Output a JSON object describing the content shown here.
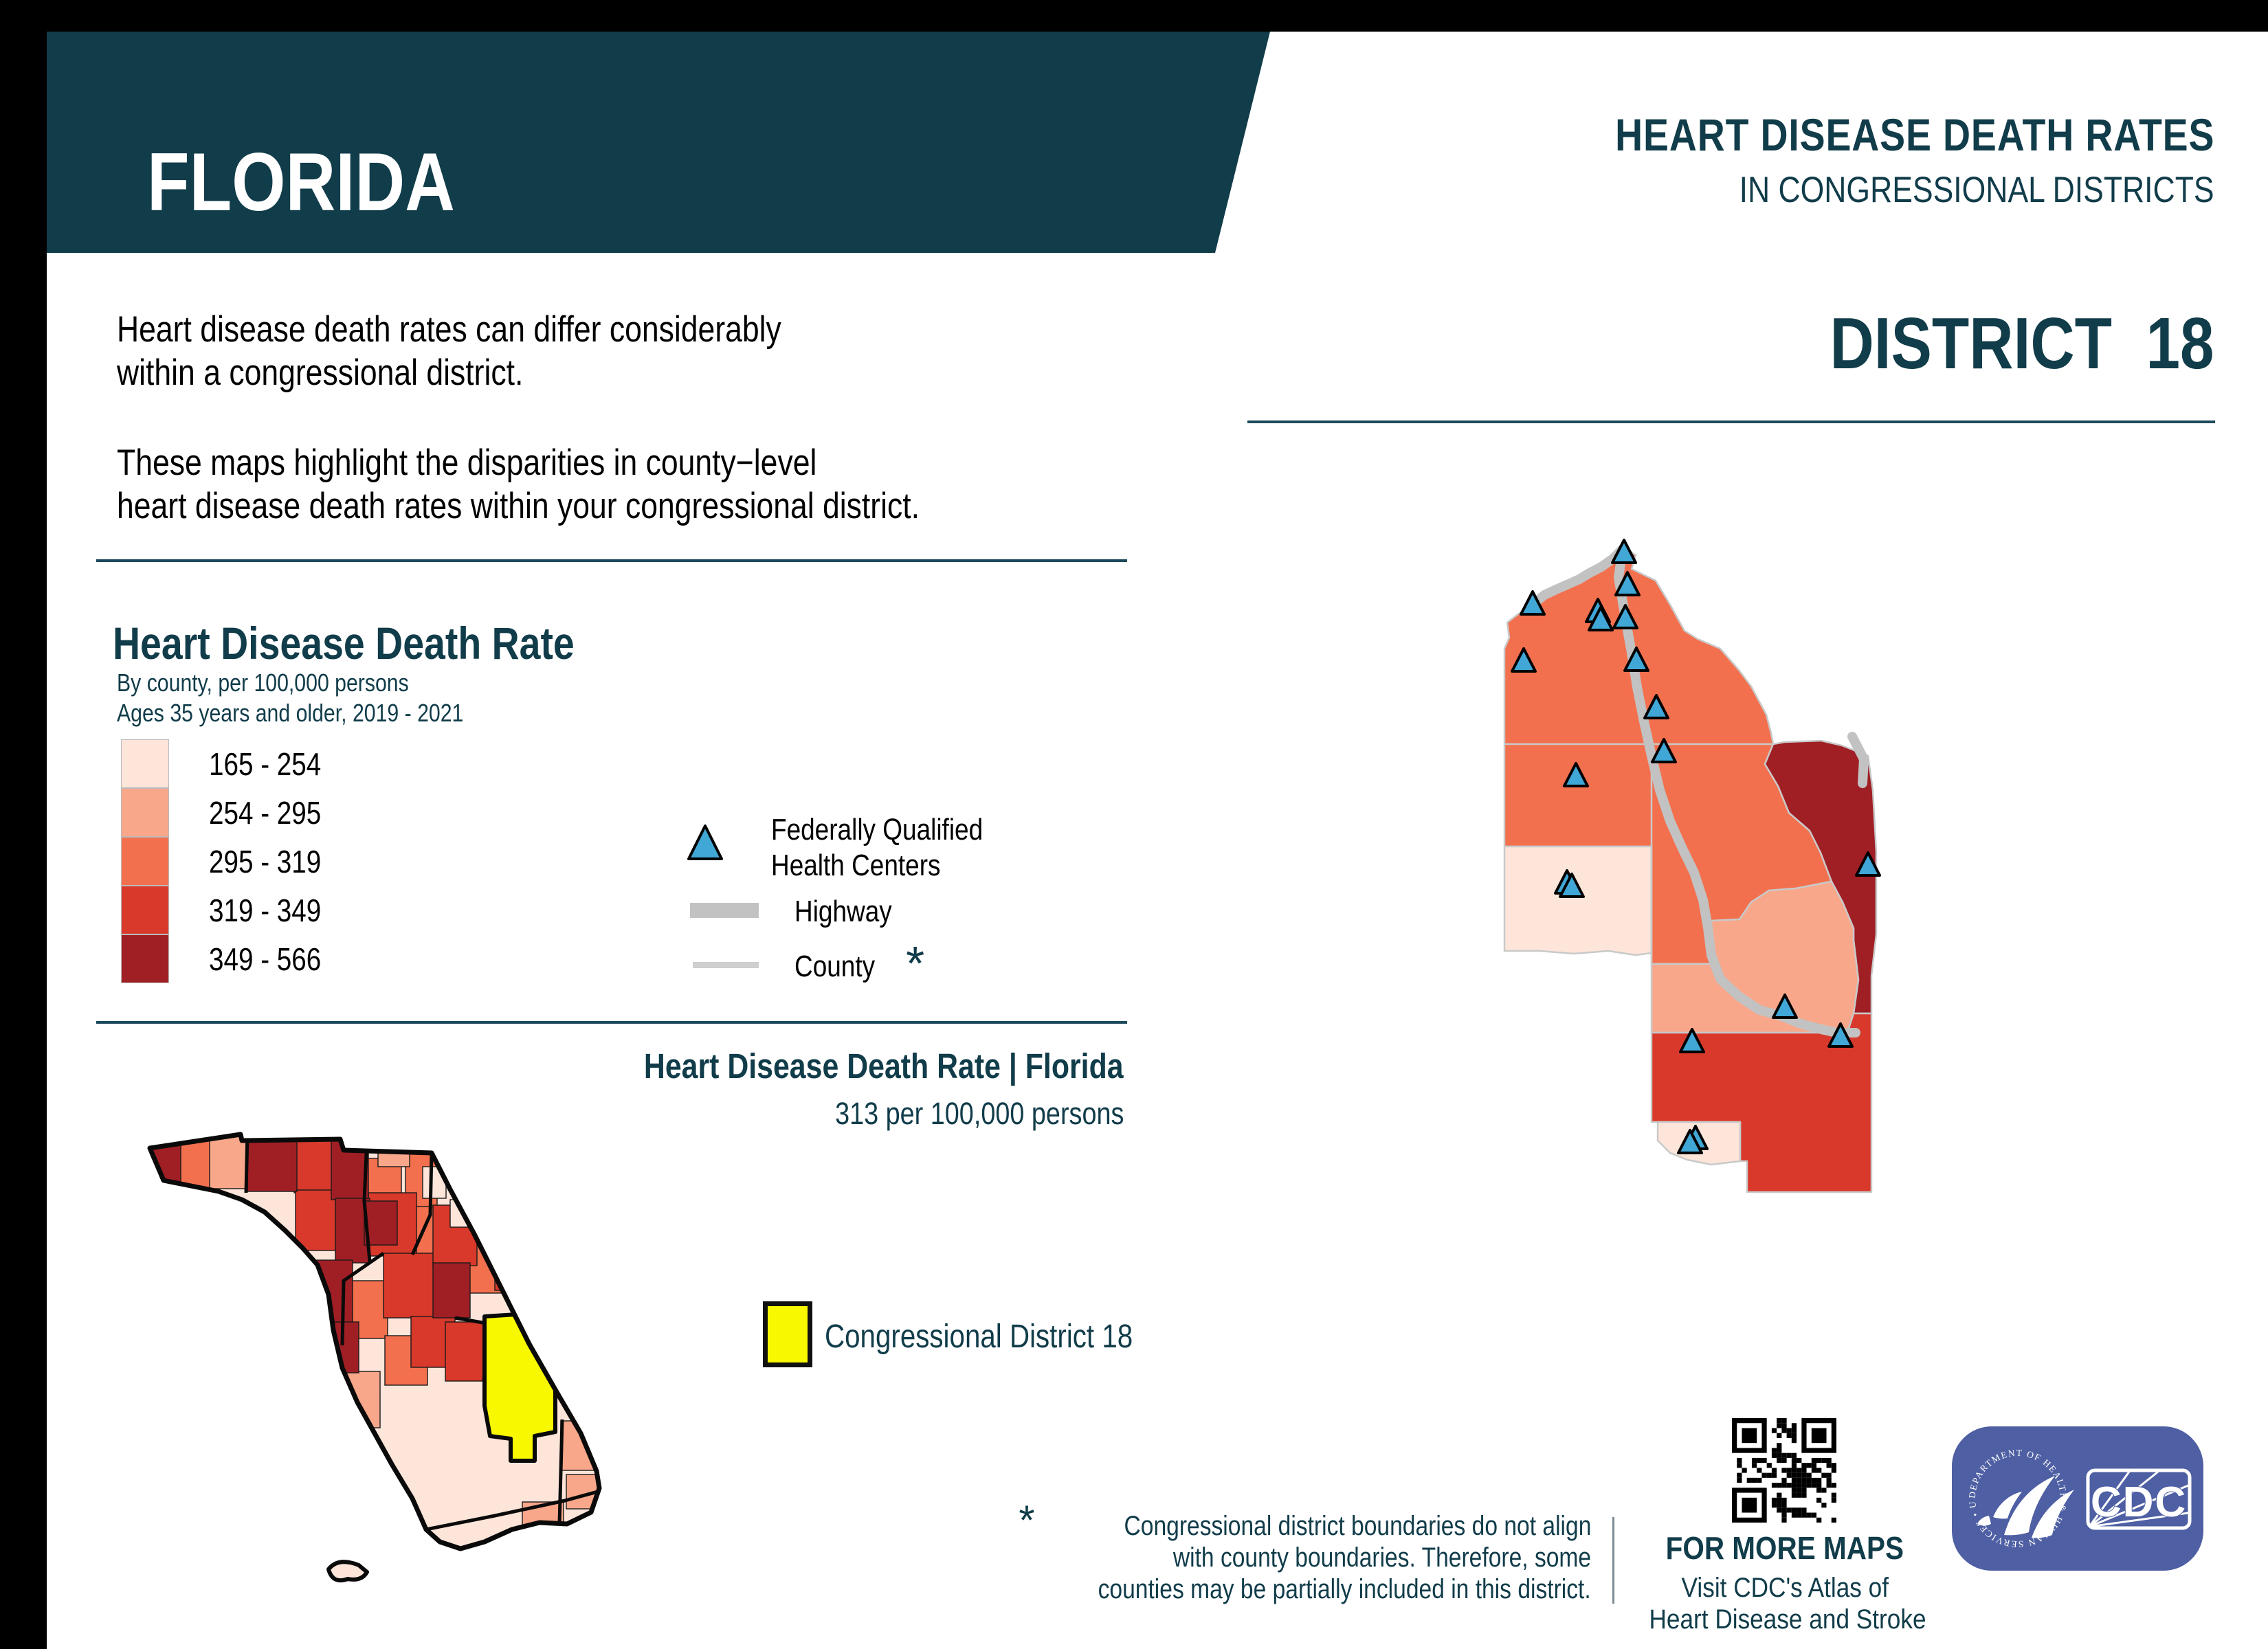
{
  "banner": {
    "state": "FLORIDA",
    "title_line1": "HEART DISEASE DEATH RATES",
    "title_line2": "IN CONGRESSIONAL DISTRICTS",
    "color": "#113C4A"
  },
  "intro": {
    "p1_line1": "Heart disease death rates can differ considerably",
    "p1_line2": "within a congressional district.",
    "p2_line1": "These maps highlight the disparities in county−level",
    "p2_line2": "heart disease death rates within your congressional district."
  },
  "legend": {
    "title": "Heart Disease Death Rate",
    "subtitle1": "By county, per 100,000 persons",
    "subtitle2": "Ages 35 years and older, 2019 - 2021",
    "classes": [
      {
        "range": "165 - 254",
        "color": "#FDE5DA"
      },
      {
        "range": "254 - 295",
        "color": "#F8A78A"
      },
      {
        "range": "295 - 319",
        "color": "#F3704E"
      },
      {
        "range": "319 - 349",
        "color": "#D8392B"
      },
      {
        "range": "349 - 566",
        "color": "#A01F25"
      }
    ],
    "fqhc_line1": "Federally Qualified",
    "fqhc_line2": "Health Centers",
    "highway_label": "Highway",
    "county_label": "County",
    "county_asterisk": "*"
  },
  "state_map": {
    "heading": "Heart Disease Death Rate | Florida",
    "subheading": "313 per 100,000 persons",
    "district_legend_label": "Congressional District 18",
    "district_color": "#F8F800"
  },
  "district": {
    "title": "DISTRICT  18",
    "number": "18"
  },
  "district_map": {
    "fqhc_symbol_color": "#41A7D6",
    "highway_color": "#C2C2C2",
    "fqhc_sites": [
      [
        2363,
        806
      ],
      [
        2230,
        881
      ],
      [
        2325,
        892
      ],
      [
        2329,
        904
      ],
      [
        2365,
        901
      ],
      [
        2368,
        853
      ],
      [
        2217,
        964
      ],
      [
        2381,
        963
      ],
      [
        2410,
        1032
      ],
      [
        2421,
        1096
      ],
      [
        2293,
        1131
      ],
      [
        2280,
        1287
      ],
      [
        2287,
        1292
      ],
      [
        2718,
        1261
      ],
      [
        2597,
        1468
      ],
      [
        2678,
        1510
      ],
      [
        2462,
        1518
      ],
      [
        2467,
        1659
      ],
      [
        2459,
        1665
      ]
    ]
  },
  "footnote": {
    "asterisk": "*",
    "line1": "Congressional district boundaries do not align",
    "line2": "with county boundaries. Therefore, some",
    "line3": "counties may be partially included in this district."
  },
  "more_maps": {
    "line1": "FOR MORE MAPS",
    "line2": "Visit CDC's Atlas of",
    "line3": "Heart Disease and Stroke"
  },
  "logo": {
    "cdc": "CDC",
    "seal_text": "DEPARTMENT OF HEALTH & HUMAN SERVICES • USA"
  }
}
